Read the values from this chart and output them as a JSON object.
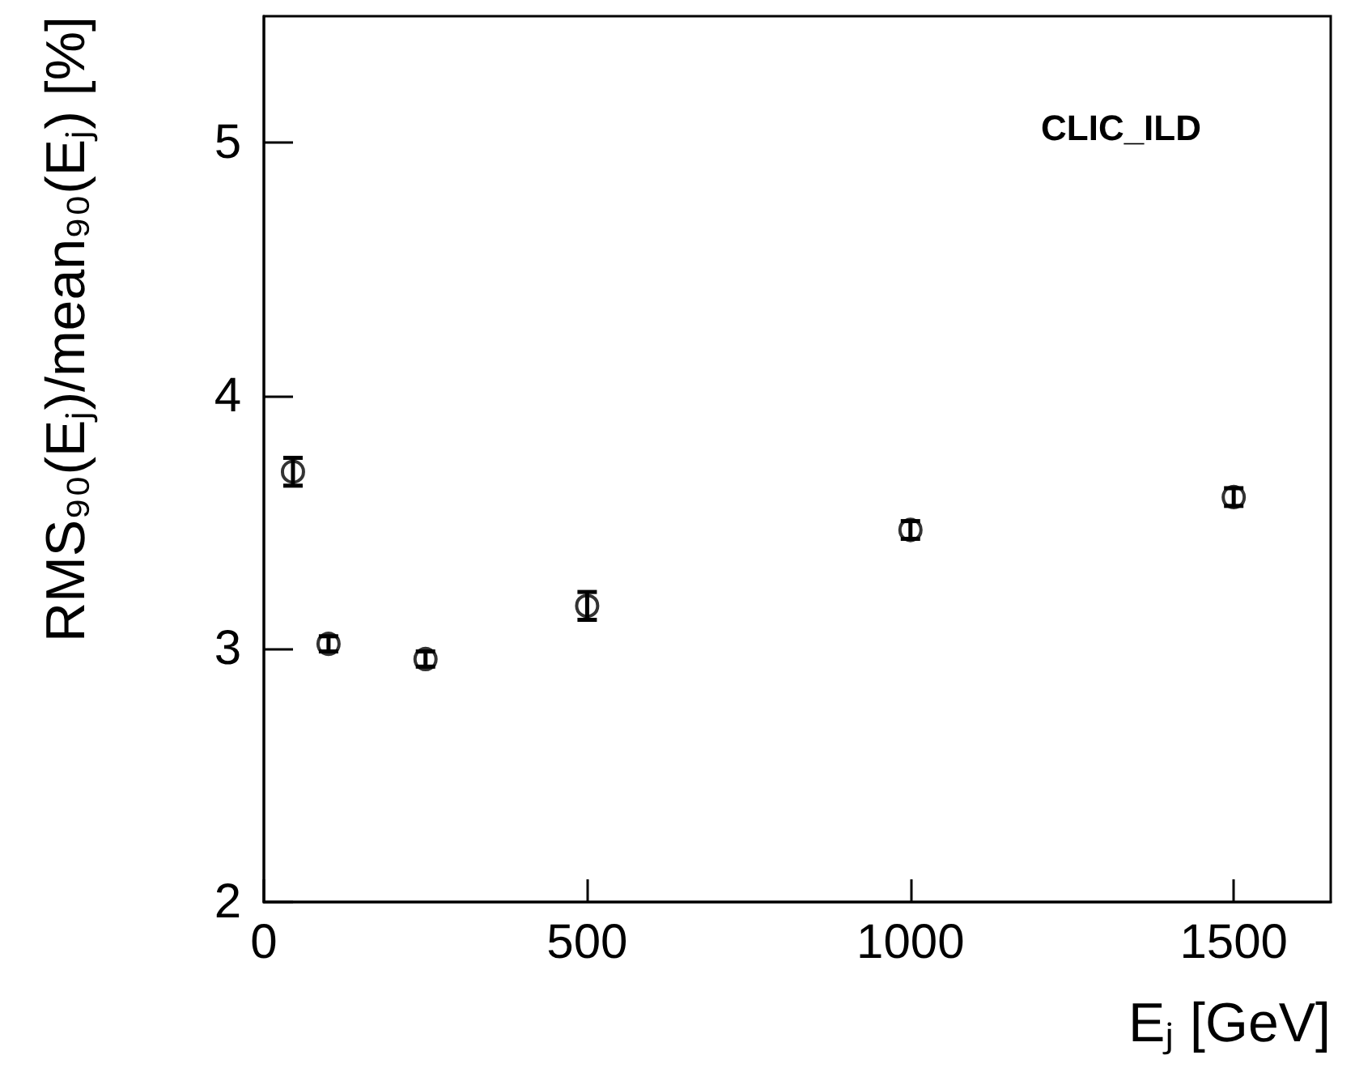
{
  "chart_data": {
    "type": "scatter",
    "xlabel": "Eⱼ [GeV]",
    "ylabel": "RMS₉₀(Eⱼ)/mean₉₀(Eⱼ) [%]",
    "annotations": [
      "CLIC_ILD"
    ],
    "x": [
      45,
      100,
      250,
      500,
      1000,
      1500
    ],
    "series": [
      {
        "color": "#000000",
        "values": [
          3.7,
          3.02,
          2.96,
          3.17,
          3.47,
          3.6
        ],
        "errors": [
          0.055,
          0.03,
          0.03,
          0.055,
          0.035,
          0.035
        ]
      }
    ],
    "xlim": [
      0,
      1650
    ],
    "xticks": [
      0,
      500,
      1000,
      1500
    ],
    "ylim": [
      2,
      5.5
    ],
    "yticks": [
      2,
      3,
      4,
      5
    ],
    "grid": false,
    "marker": "circle"
  }
}
